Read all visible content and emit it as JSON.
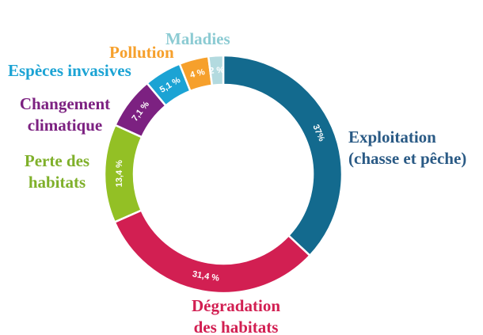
{
  "chart_data": {
    "type": "pie",
    "title": "",
    "slices": [
      {
        "label": "Exploitation\n(chasse et pêche)",
        "value": 37,
        "value_label": "37%",
        "color": "#136a8e"
      },
      {
        "label": "Dégradation\ndes habitats",
        "value": 31.4,
        "value_label": "31,4 %",
        "color": "#d21f52"
      },
      {
        "label": "Perte des\nhabitats",
        "value": 13.4,
        "value_label": "13,4 %",
        "color": "#93c025"
      },
      {
        "label": "Changement\nclimatique",
        "value": 7.1,
        "value_label": "7,1 %",
        "color": "#7c2181"
      },
      {
        "label": "Espèces invasives",
        "value": 5.1,
        "value_label": "5,1 %",
        "color": "#1ba3d4"
      },
      {
        "label": "Pollution",
        "value": 4,
        "value_label": "4 %",
        "color": "#f6a02c"
      },
      {
        "label": "Maladies",
        "value": 2,
        "value_label": "2 %",
        "color": "#b3dadf"
      }
    ],
    "legend": "none",
    "grid": false
  }
}
